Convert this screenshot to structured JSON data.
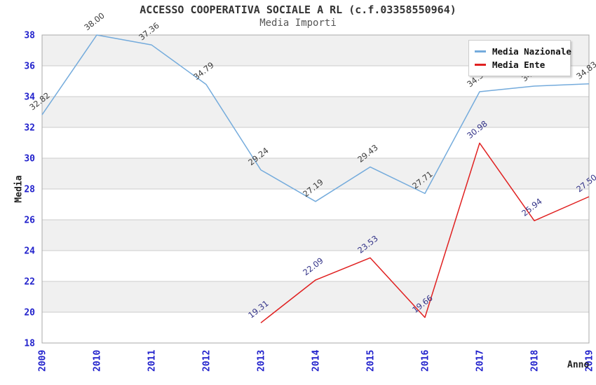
{
  "chart_data": {
    "type": "line",
    "title": "ACCESSO COOPERATIVA SOCIALE A RL (c.f.03358550964)",
    "subtitle": "Media Importi",
    "xlabel": "Anno",
    "ylabel": "Media",
    "x": [
      2009,
      2010,
      2011,
      2012,
      2013,
      2014,
      2015,
      2016,
      2017,
      2018,
      2019
    ],
    "ylim": [
      18,
      38
    ],
    "ytick_step": 2,
    "grid": true,
    "legend_position": "top-right",
    "series": [
      {
        "name": "Media Nazionale",
        "color": "#74ABDC",
        "label_color": "#3d3d3d",
        "x": [
          2009,
          2010,
          2011,
          2012,
          2013,
          2014,
          2015,
          2016,
          2017,
          2018,
          2019
        ],
        "values": [
          32.82,
          38.0,
          37.36,
          34.79,
          29.24,
          27.19,
          29.43,
          27.71,
          34.32,
          34.68,
          34.83
        ],
        "labels": [
          "32.82",
          "38.00",
          "37.36",
          "34.79",
          "29.24",
          "27.19",
          "29.43",
          "27.71",
          "34.32",
          "34.68",
          "34.83"
        ]
      },
      {
        "name": "Media Ente",
        "color": "#E02020",
        "label_color": "#333388",
        "x": [
          2013,
          2014,
          2015,
          2016,
          2017,
          2018,
          2019
        ],
        "values": [
          19.31,
          22.09,
          23.53,
          19.66,
          30.98,
          25.94,
          27.5
        ],
        "labels": [
          "19.31",
          "22.09",
          "23.53",
          "19.66",
          "30.98",
          "25.94",
          "27.50"
        ]
      }
    ],
    "style_colors": {
      "tick_label_blue": "#2222CC",
      "band_gray": "#F0F0F0",
      "band_white": "#FFFFFF",
      "grid_line": "#CCCCCC",
      "plot_border": "#AAAAAA",
      "title_color": "#333333",
      "subtitle_color": "#555555"
    }
  }
}
